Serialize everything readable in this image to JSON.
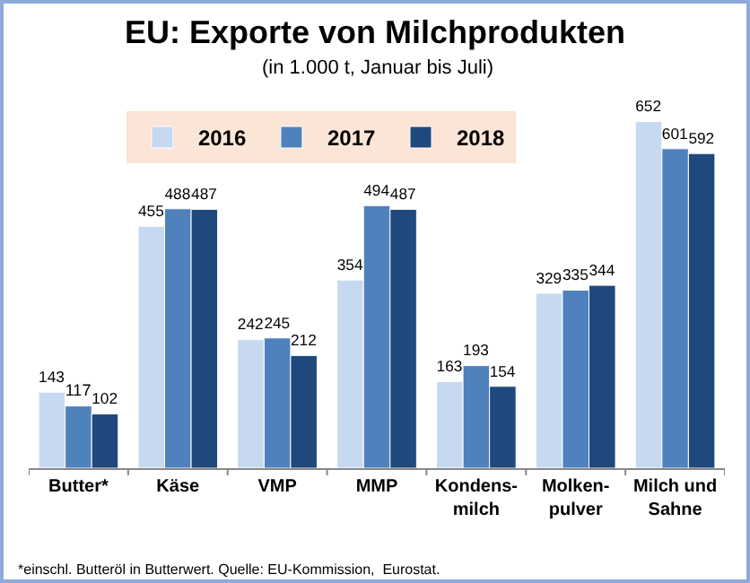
{
  "chart_data": {
    "type": "bar",
    "title": "EU: Exporte von Milchprodukten",
    "subtitle": "(in 1.000 t, Januar bis Juli)",
    "categories": [
      "Butter*",
      "Käse",
      "VMP",
      "MMP",
      "Kondens-\nmilch",
      "Molken-\npulver",
      "Milch und\nSahne"
    ],
    "series": [
      {
        "name": "2016",
        "color": "#c6d9f1",
        "values": [
          143,
          455,
          242,
          354,
          163,
          329,
          652
        ]
      },
      {
        "name": "2017",
        "color": "#4f81bd",
        "values": [
          117,
          488,
          245,
          494,
          193,
          335,
          601
        ]
      },
      {
        "name": "2018",
        "color": "#1f497d",
        "values": [
          102,
          487,
          212,
          487,
          154,
          344,
          592
        ]
      }
    ],
    "data_labels": true,
    "legend": "top",
    "annotations": [
      "*einschl. Butteröl in Butterwert. Quelle: EU-Kommission,  Eurostat."
    ]
  }
}
